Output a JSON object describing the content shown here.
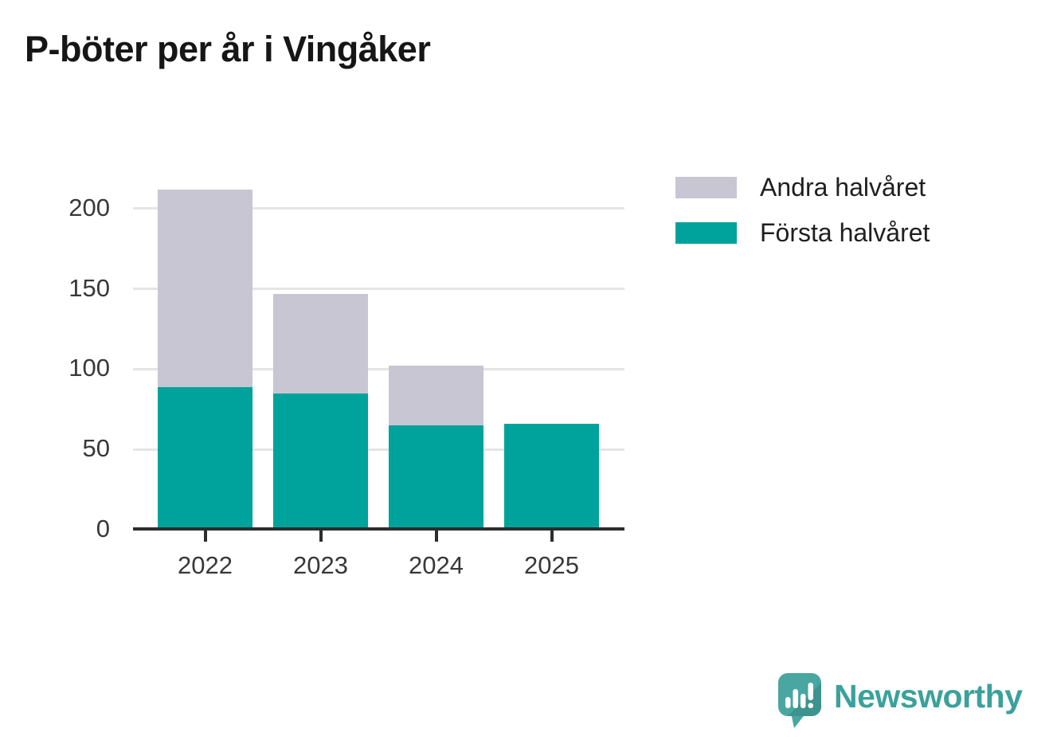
{
  "title": "P-böter per år i Vingåker",
  "chart_data": {
    "type": "bar",
    "stacked": true,
    "categories": [
      "2022",
      "2023",
      "2024",
      "2025"
    ],
    "series": [
      {
        "name": "Första halvåret",
        "color": "#00a39b",
        "values": [
          88,
          84,
          64,
          65
        ]
      },
      {
        "name": "Andra halvåret",
        "color": "#c8c6d2",
        "values": [
          123,
          62,
          37,
          0
        ]
      }
    ],
    "totals": [
      211,
      146,
      101,
      65
    ],
    "title": "P-böter per år i Vingåker",
    "xlabel": "",
    "ylabel": "",
    "ylim": [
      0,
      220
    ],
    "yticks": [
      0,
      50,
      100,
      150,
      200
    ],
    "grid": true,
    "legend_position": "upper-right",
    "legend_order": [
      "Andra halvåret",
      "Första halvåret"
    ]
  },
  "legend": {
    "items": [
      {
        "label": "Andra halvåret",
        "color": "#c8c6d2"
      },
      {
        "label": "Första halvåret",
        "color": "#00a39b"
      }
    ]
  },
  "branding": {
    "name": "Newsworthy",
    "text_color": "#3ba19b",
    "pin_color": "#4aa6a0",
    "pin_shadow_color": "#3d948e",
    "pin_glyph_color": "#ffffff"
  }
}
